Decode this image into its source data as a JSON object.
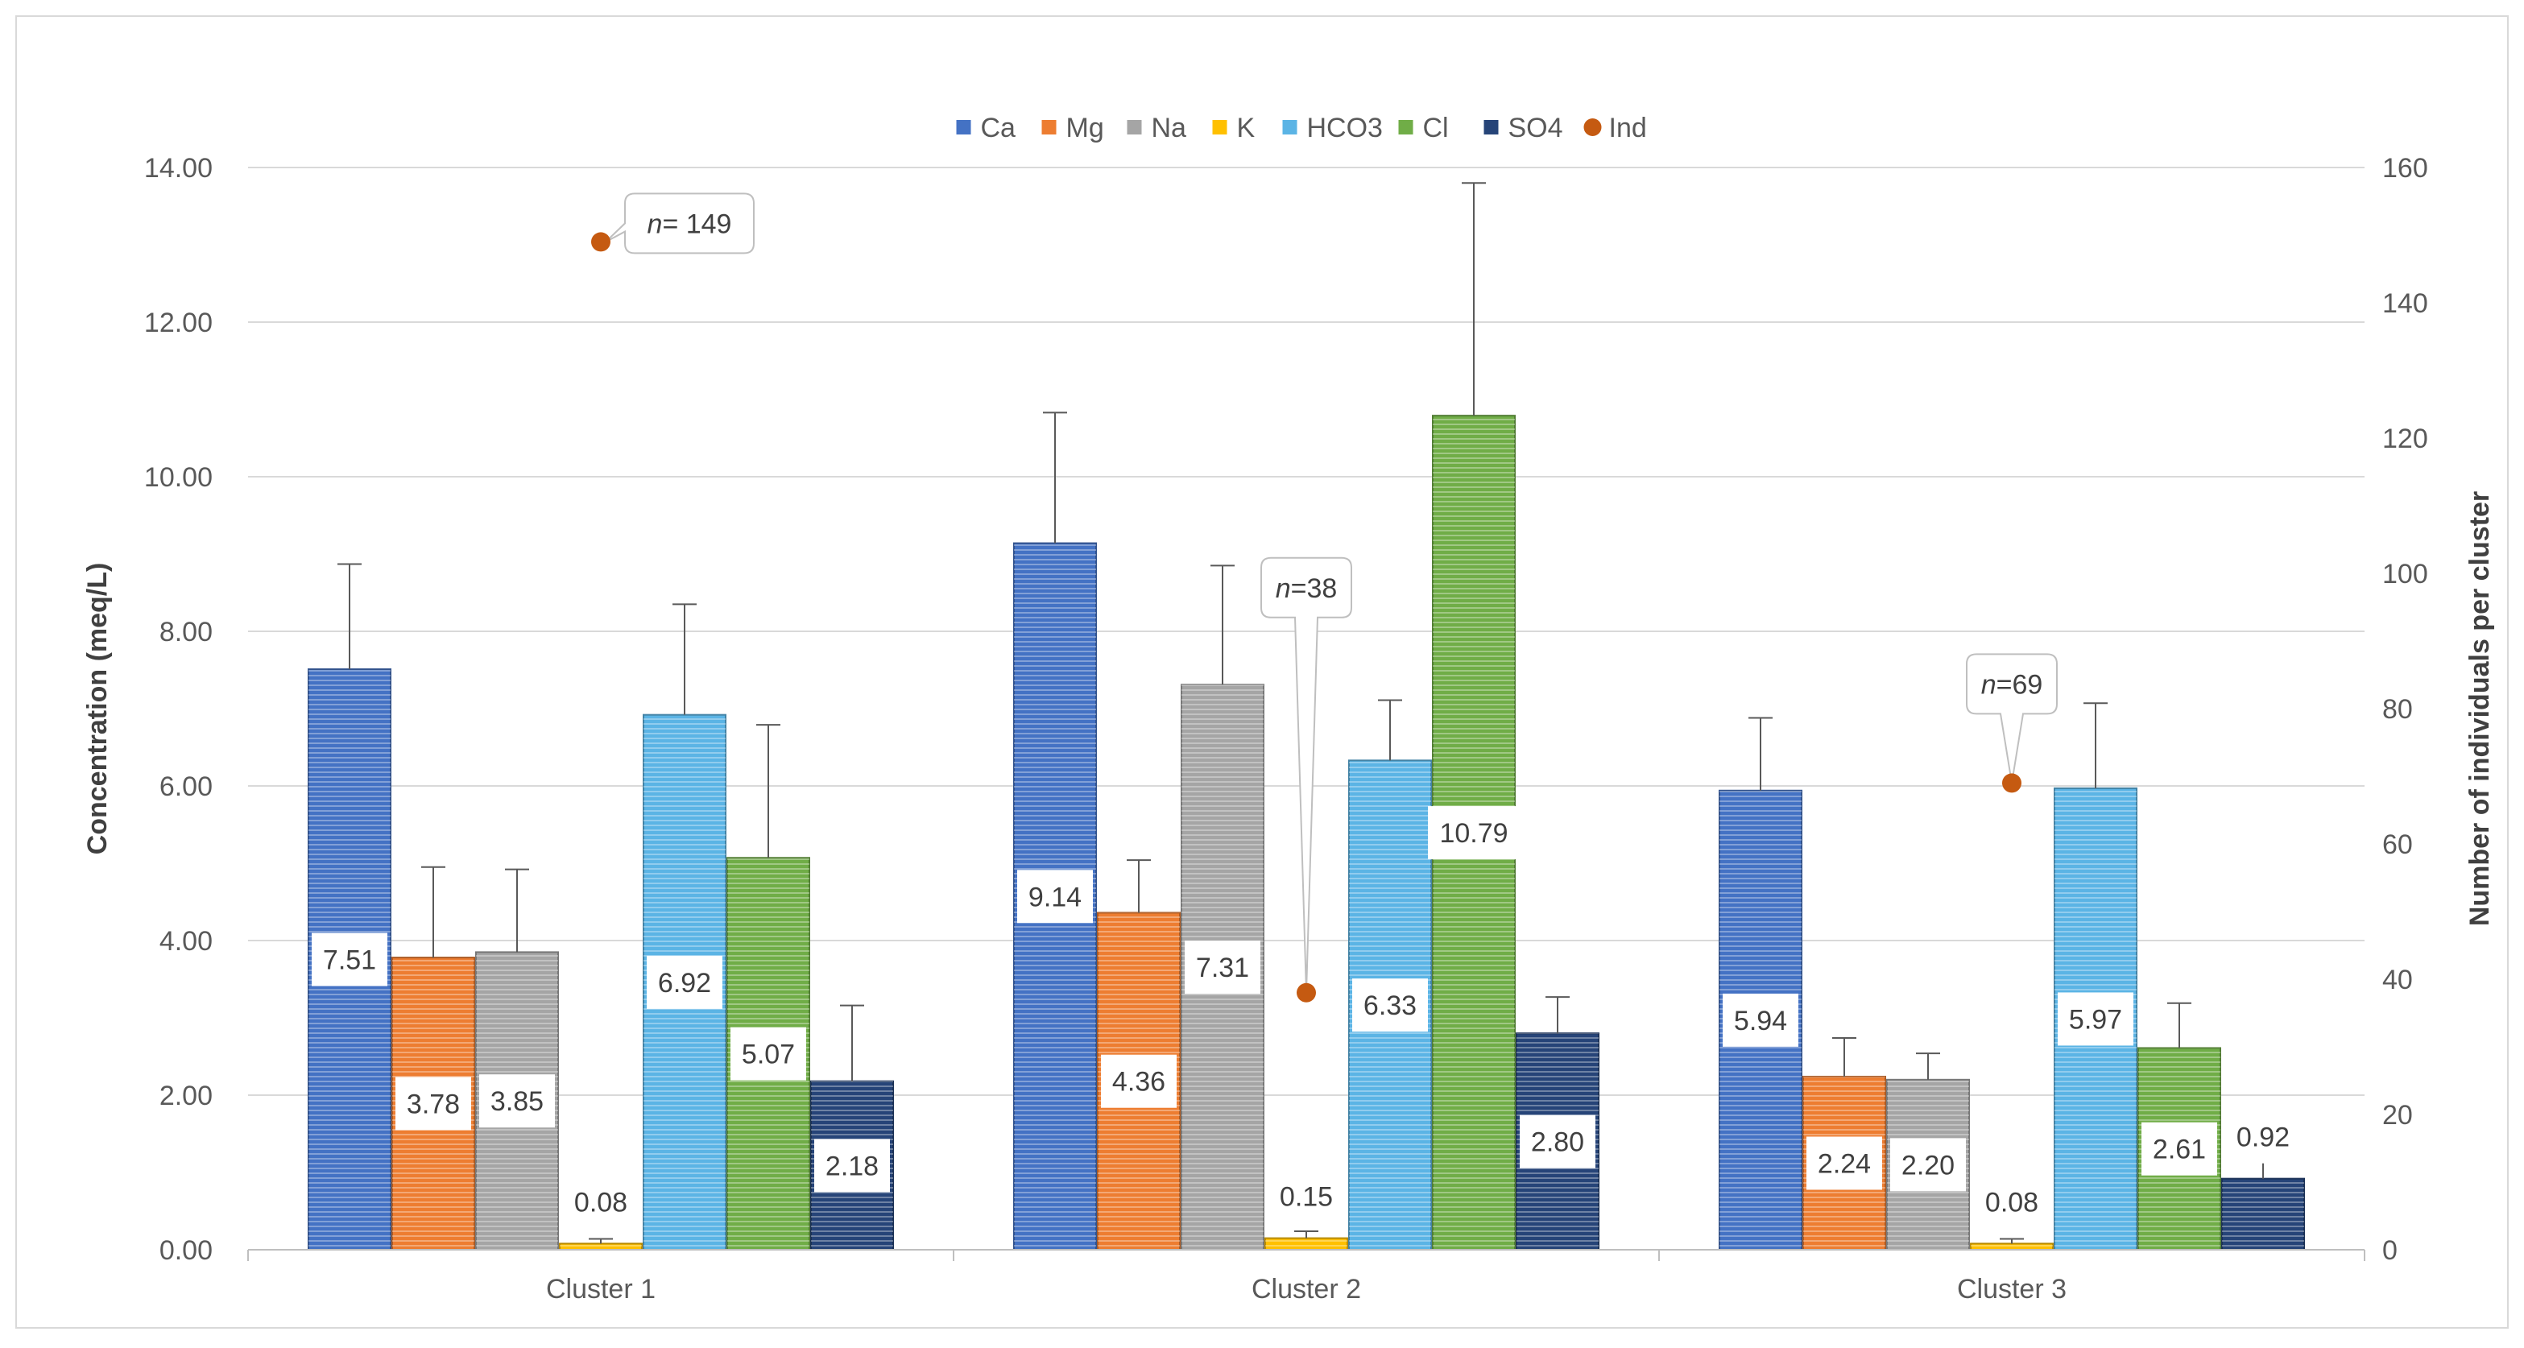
{
  "chart_data": {
    "type": "bar",
    "categories": [
      "Cluster 1",
      "Cluster 2",
      "Cluster 3"
    ],
    "ylabel": "Concentration  (meq/L)",
    "y2label": "Number of individuals per cluster",
    "ylim": [
      0,
      14
    ],
    "y2lim": [
      0,
      160
    ],
    "yticks": [
      "0.00",
      "2.00",
      "4.00",
      "6.00",
      "8.00",
      "10.00",
      "12.00",
      "14.00"
    ],
    "y2ticks": [
      "0",
      "20",
      "40",
      "60",
      "80",
      "100",
      "120",
      "140",
      "160"
    ],
    "legend_position": "top-center",
    "grid": true,
    "series": [
      {
        "name": "Ca",
        "color": "#4472C4",
        "values": [
          7.51,
          9.14,
          5.94
        ],
        "errors": [
          8.87,
          10.83,
          6.88
        ],
        "labels": [
          "7.51",
          "9.14",
          "5.94"
        ]
      },
      {
        "name": "Mg",
        "color": "#ED7D31",
        "values": [
          3.78,
          4.36,
          2.24
        ],
        "errors": [
          4.95,
          5.04,
          2.74
        ],
        "labels": [
          "3.78",
          "4.36",
          "2.24"
        ]
      },
      {
        "name": "Na",
        "color": "#A5A5A5",
        "values": [
          3.85,
          7.31,
          2.2
        ],
        "errors": [
          4.92,
          8.85,
          2.54
        ],
        "labels": [
          "3.85",
          "7.31",
          "2.20"
        ]
      },
      {
        "name": "K",
        "color": "#FFC000",
        "values": [
          0.08,
          0.15,
          0.08
        ],
        "errors": [
          0.14,
          0.24,
          0.14
        ],
        "labels": [
          "0.08",
          "0.15",
          "0.08"
        ]
      },
      {
        "name": "HCO3",
        "color": "#5BB4E5",
        "values": [
          6.92,
          6.33,
          5.97
        ],
        "errors": [
          8.35,
          7.11,
          7.07
        ],
        "labels": [
          "6.92",
          "6.33",
          "5.97"
        ]
      },
      {
        "name": "Cl",
        "color": "#70AD47",
        "values": [
          5.07,
          10.79,
          2.61
        ],
        "errors": [
          6.79,
          13.8,
          3.19
        ],
        "labels": [
          "5.07",
          "10.79",
          "2.61"
        ]
      },
      {
        "name": "SO4",
        "color": "#264478",
        "values": [
          2.18,
          2.8,
          0.92
        ],
        "errors": [
          3.16,
          3.27,
          1.25
        ],
        "labels": [
          "2.18",
          "2.80",
          "0.92"
        ]
      }
    ],
    "individuals": {
      "name": "Ind",
      "color": "#C55A11",
      "values": [
        149,
        38,
        69
      ],
      "callout_prefix": [
        "n",
        "n",
        "n"
      ],
      "callout_suffix": [
        "= 149",
        "=38",
        "=69"
      ]
    }
  }
}
